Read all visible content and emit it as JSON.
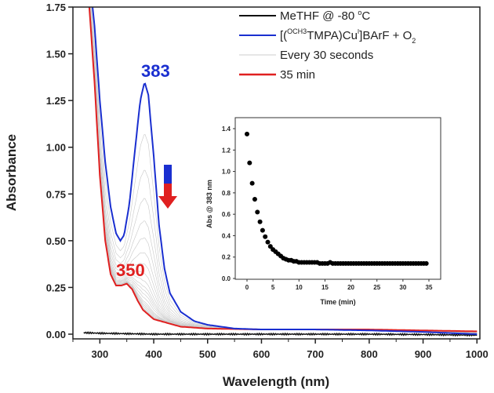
{
  "chart_data": [
    {
      "type": "line",
      "title": "",
      "xlabel": "Wavelength (nm)",
      "ylabel": "Absorbance",
      "xlim": [
        250,
        1000
      ],
      "ylim": [
        0,
        1.75
      ],
      "xticks": [
        "300",
        "400",
        "500",
        "600",
        "700",
        "800",
        "900",
        "1000"
      ],
      "yticks": [
        "0.00",
        "0.25",
        "0.50",
        "0.75",
        "1.00",
        "1.25",
        "1.50",
        "1.75"
      ],
      "grid": false,
      "legend_position": "top-right",
      "series": [
        {
          "name": "MeTHF @ -80 °C",
          "color": "#111111",
          "x": [
            250,
            300,
            400,
            500,
            600,
            700,
            800,
            900,
            1000
          ],
          "y": [
            0.01,
            0.005,
            0.0,
            0.0,
            0.0,
            0.0,
            0.0,
            -0.002,
            -0.005
          ]
        },
        {
          "name": "[(OCH3TMPA)CuI]BArF + O2",
          "color": "#1a2fd0",
          "x": [
            283,
            290,
            300,
            310,
            320,
            330,
            338,
            345,
            355,
            365,
            375,
            383,
            390,
            400,
            410,
            420,
            430,
            450,
            475,
            500,
            550,
            600,
            700,
            800,
            900,
            1000
          ],
          "y": [
            1.85,
            1.65,
            1.25,
            0.92,
            0.68,
            0.54,
            0.5,
            0.53,
            0.7,
            0.98,
            1.25,
            1.35,
            1.28,
            0.95,
            0.58,
            0.35,
            0.22,
            0.12,
            0.07,
            0.05,
            0.03,
            0.025,
            0.025,
            0.02,
            0.012,
            0.0
          ]
        },
        {
          "name": "Every 30 seconds",
          "color": "#c8c8c8"
        },
        {
          "name": "35 min",
          "color": "#e02020",
          "x": [
            278,
            290,
            300,
            310,
            320,
            330,
            340,
            350,
            360,
            370,
            380,
            400,
            450,
            500,
            600,
            800,
            900,
            1000
          ],
          "y": [
            1.85,
            1.35,
            0.85,
            0.5,
            0.32,
            0.26,
            0.26,
            0.27,
            0.24,
            0.18,
            0.13,
            0.08,
            0.04,
            0.03,
            0.025,
            0.025,
            0.02,
            0.015
          ]
        }
      ],
      "annotations": {
        "peak": "383",
        "shoulder": "350"
      },
      "legend": {
        "black": "MeTHF @ -80 ",
        "black_deg": "o",
        "black_unit": "C",
        "blue_pre": "[(",
        "blue_sup1": "OCH3",
        "blue_mid": "TMPA)Cu",
        "blue_sup2": "I",
        "blue_post": "]BArF + O",
        "blue_sub": "2",
        "gray": "Every 30 seconds",
        "red": "35 min"
      }
    },
    {
      "type": "scatter",
      "title": "",
      "xlabel": "Time (min)",
      "ylabel": "Abs @ 383 nm",
      "xlim": [
        -1,
        36
      ],
      "ylim": [
        0,
        1.5
      ],
      "xticks": [
        "0",
        "5",
        "10",
        "15",
        "20",
        "25",
        "30",
        "35"
      ],
      "yticks": [
        "0.0",
        "0.2",
        "0.4",
        "0.6",
        "0.8",
        "1.0",
        "1.2",
        "1.4"
      ],
      "time_step_min": 0.5,
      "values": [
        1.35,
        1.08,
        0.89,
        0.74,
        0.62,
        0.53,
        0.45,
        0.39,
        0.34,
        0.3,
        0.27,
        0.25,
        0.23,
        0.21,
        0.19,
        0.18,
        0.17,
        0.17,
        0.16,
        0.16,
        0.15,
        0.15,
        0.15,
        0.15,
        0.15,
        0.15,
        0.15,
        0.15,
        0.14,
        0.14,
        0.14,
        0.14,
        0.15,
        0.14,
        0.14,
        0.14,
        0.14,
        0.14,
        0.14,
        0.14,
        0.14,
        0.14,
        0.14,
        0.14,
        0.14,
        0.14,
        0.14,
        0.14,
        0.14,
        0.14,
        0.14,
        0.14,
        0.14,
        0.14,
        0.14,
        0.14,
        0.14,
        0.14,
        0.14,
        0.14,
        0.14,
        0.14,
        0.14,
        0.14,
        0.14,
        0.14,
        0.14,
        0.14,
        0.14,
        0.14
      ]
    }
  ]
}
